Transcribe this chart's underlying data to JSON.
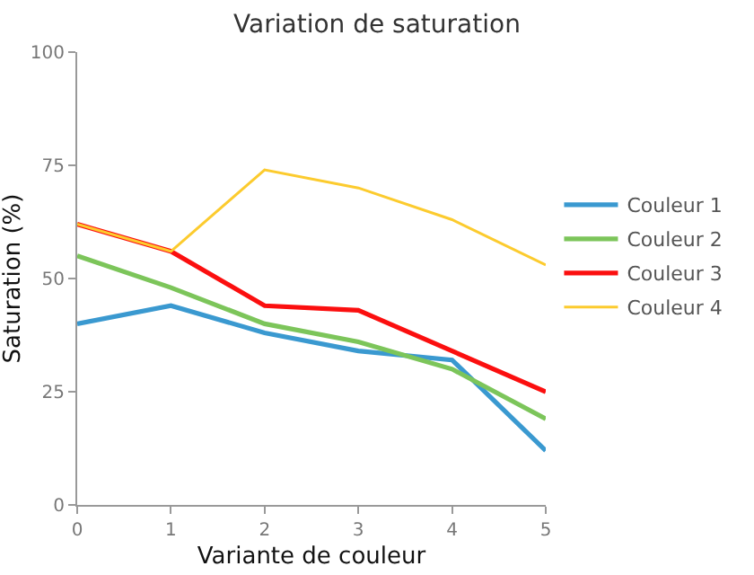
{
  "chart_data": {
    "type": "line",
    "title": "Variation de saturation",
    "xlabel": "Variante de couleur",
    "ylabel": "Saturation (%)",
    "x": [
      0,
      1,
      2,
      3,
      4,
      5
    ],
    "xlim": [
      0,
      5
    ],
    "xticks": [
      0,
      1,
      2,
      3,
      4,
      5
    ],
    "ylim": [
      0,
      100
    ],
    "yticks": [
      0,
      25,
      50,
      75,
      100
    ],
    "series": [
      {
        "name": "Couleur 1",
        "color": "#3a99d0",
        "values": [
          40,
          44,
          38,
          34,
          32,
          12
        ]
      },
      {
        "name": "Couleur 2",
        "color": "#7cc55a",
        "values": [
          55,
          48,
          40,
          36,
          30,
          19
        ]
      },
      {
        "name": "Couleur 3",
        "color": "#fb0f0f",
        "values": [
          62,
          56,
          44,
          43,
          34,
          25
        ]
      },
      {
        "name": "Couleur 4",
        "color": "#fccb2e",
        "values": [
          62,
          56,
          74,
          70,
          63,
          53
        ]
      }
    ],
    "legend": "right",
    "grid": false,
    "marker": "none",
    "line_style": "solid"
  }
}
